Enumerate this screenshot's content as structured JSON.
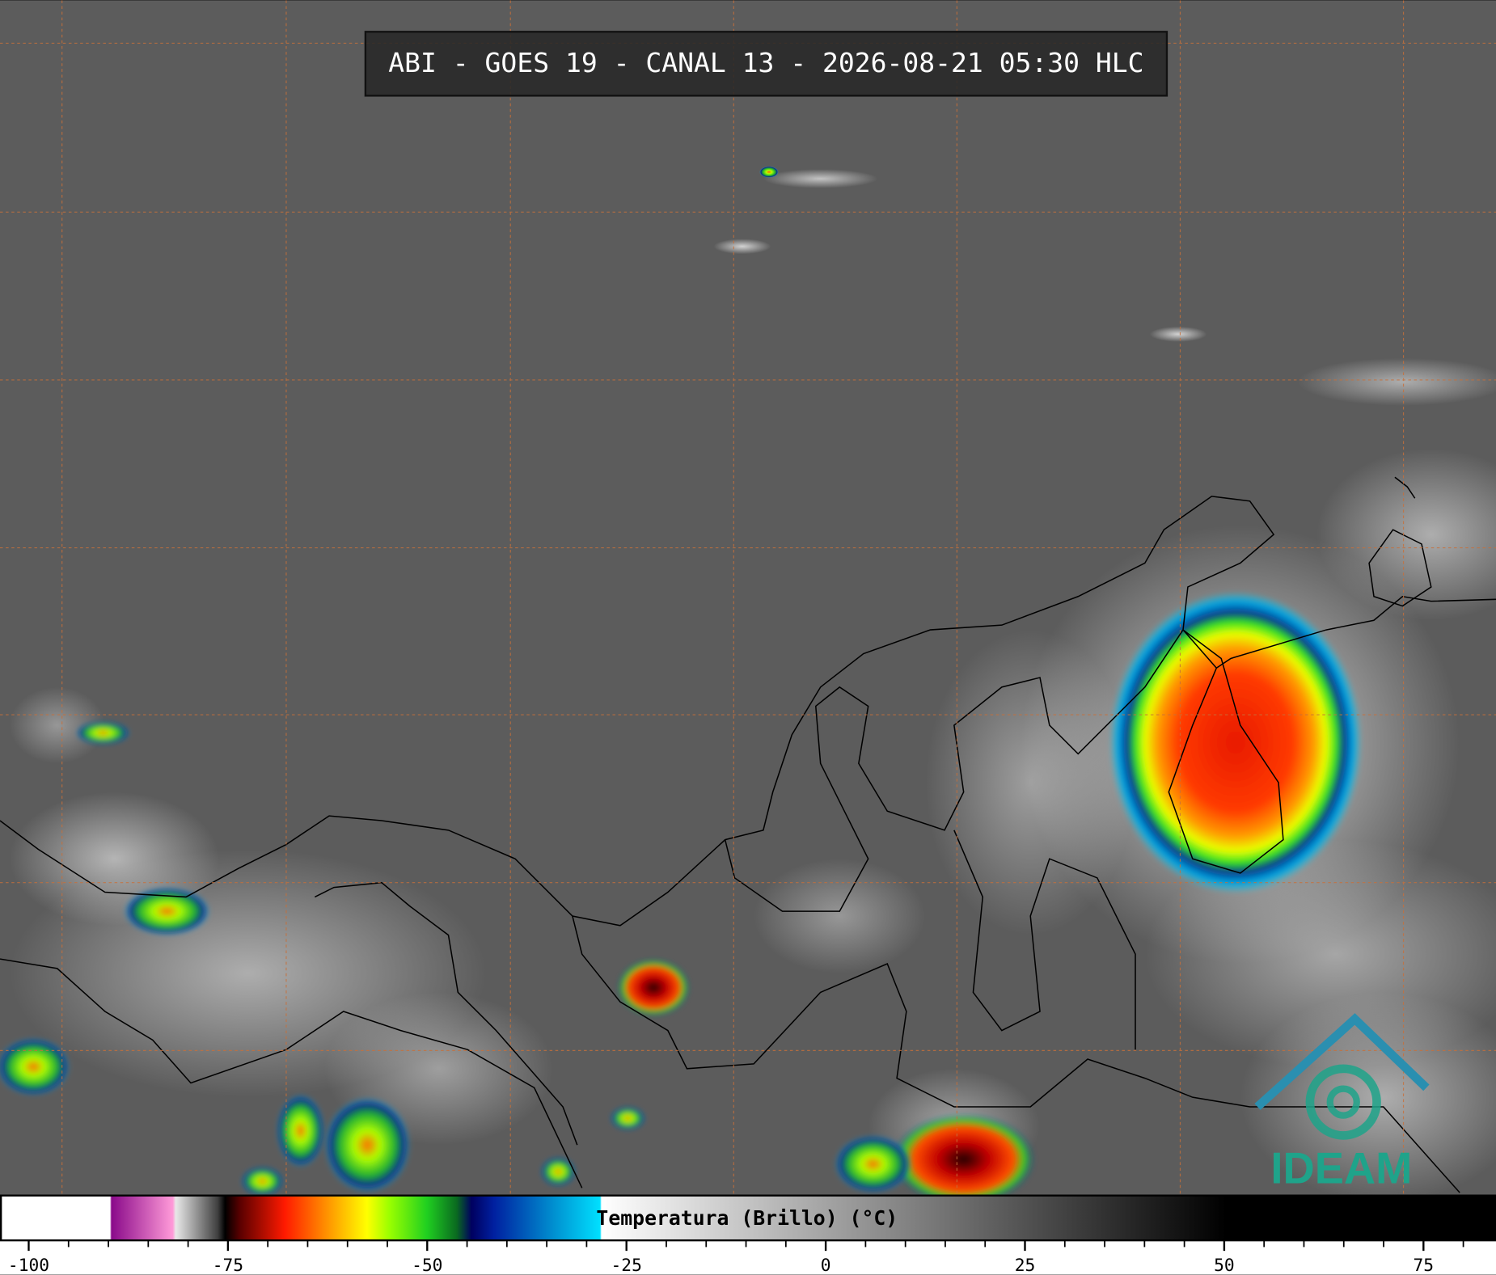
{
  "header": {
    "title": "ABI - GOES 19 - CANAL 13 - 2026-08-21 05:30 HLC"
  },
  "colorbar": {
    "label": "Temperatura (Brillo) (°C)",
    "lim": [
      -103.6,
      84.1
    ],
    "ticks": [
      -100,
      -75,
      -50,
      -25,
      0,
      25,
      50,
      75
    ],
    "minor_ticks": [
      -95,
      -90,
      -85,
      -80,
      -70,
      -65,
      -60,
      -55,
      -45,
      -40,
      -35,
      -30,
      -20,
      -15,
      -10,
      -5,
      5,
      10,
      15,
      20,
      30,
      35,
      40,
      45,
      55,
      60,
      65,
      70,
      80
    ]
  },
  "logo": {
    "text": "IDEAM"
  }
}
